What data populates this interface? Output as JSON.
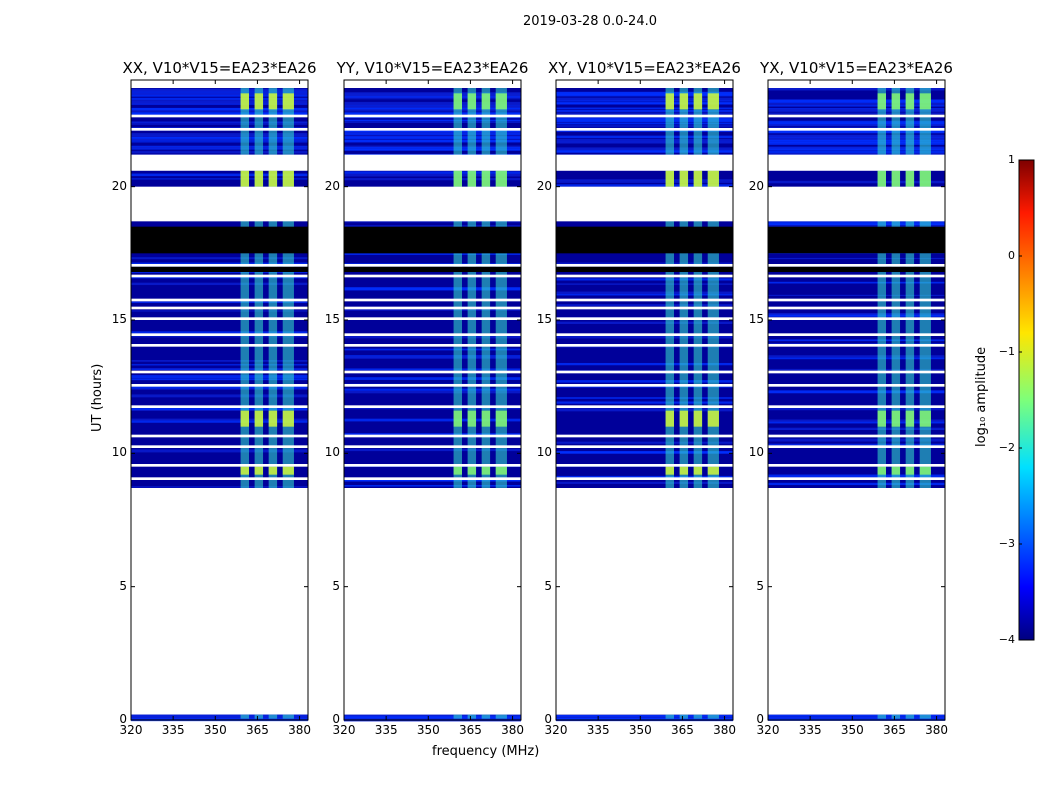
{
  "colors": {
    "background": "#00009a",
    "noise_a": "#0a1ed2",
    "noise_b": "#0030ff",
    "rfi_cyan": "#37e6c8",
    "rfi_green": "#8cff6e",
    "rfi_yellow": "#dcff32",
    "masked": "#000000",
    "axis": "#000000"
  },
  "chart_data": {
    "type": "heatmap",
    "title": "2019-03-28 0.0-24.0",
    "xlabel": "frequency (MHz)",
    "ylabel": "UT (hours)",
    "xlim": [
      320,
      383
    ],
    "ylim": [
      0,
      24
    ],
    "xticks": [
      320,
      335,
      350,
      365,
      380
    ],
    "yticks": [
      0,
      5,
      10,
      15,
      20
    ],
    "colorbar": {
      "label": "log₁₀ amplitude",
      "range": [
        -4,
        1
      ],
      "ticks": [
        1,
        0,
        -1,
        -2,
        -3,
        -4
      ],
      "tick_labels": [
        "1",
        "0",
        "−1",
        "−2",
        "−3",
        "−4"
      ],
      "colormap": "jet"
    },
    "panels": [
      {
        "title": "XX, V10*V15=EA23*EA26"
      },
      {
        "title": "YY, V10*V15=EA23*EA26"
      },
      {
        "title": "XY, V10*V15=EA23*EA26"
      },
      {
        "title": "YX, V10*V15=EA23*EA26"
      }
    ],
    "data_segments_ut": [
      [
        0.05,
        0.2
      ],
      [
        8.7,
        20.6
      ],
      [
        21.2,
        23.7
      ]
    ],
    "blank_gaps_ut": [
      [
        9.0,
        9.1
      ],
      [
        9.5,
        9.6
      ],
      [
        10.2,
        10.3
      ],
      [
        10.6,
        10.7
      ],
      [
        11.7,
        11.8
      ],
      [
        12.5,
        12.6
      ],
      [
        13.0,
        13.1
      ],
      [
        14.0,
        14.1
      ],
      [
        14.4,
        14.5
      ],
      [
        15.0,
        15.1
      ],
      [
        15.4,
        15.5
      ],
      [
        15.7,
        15.8
      ],
      [
        16.6,
        16.7
      ],
      [
        17.0,
        17.1
      ],
      [
        18.7,
        20.0
      ],
      [
        20.6,
        21.2
      ],
      [
        22.1,
        22.2
      ],
      [
        22.6,
        22.7
      ]
    ],
    "flagged_masked_ut": [
      [
        17.5,
        18.5
      ],
      [
        16.8,
        17.0
      ]
    ],
    "rfi_band_mhz": [
      359,
      380
    ],
    "rfi_channels_mhz": [
      [
        359,
        362
      ],
      [
        364,
        367
      ],
      [
        369,
        372
      ],
      [
        374,
        378
      ]
    ],
    "bright_rfi_ut": [
      [
        20.0,
        20.6
      ],
      [
        22.9,
        23.5
      ],
      [
        11.0,
        11.6
      ],
      [
        9.2,
        9.5
      ]
    ],
    "amplitude_background_log10": -3.2,
    "amplitude_rfi_log10": -1.5
  }
}
